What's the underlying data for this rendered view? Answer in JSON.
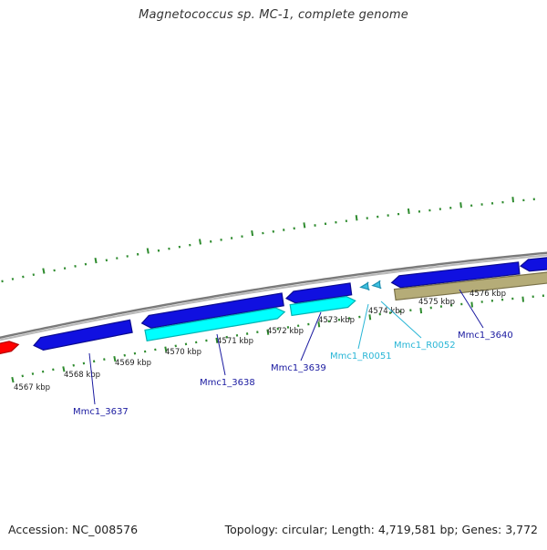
{
  "title": "Magnetococcus sp. MC-1, complete genome",
  "footer": {
    "accession": "Accession: NC_008576",
    "summary": "Topology: circular; Length: 4,719,581 bp; Genes: 3,772"
  },
  "colors": {
    "background": "#ffffff",
    "backbone": "#8c8c8c",
    "tick_green": "#2e8b2e",
    "gene_blue": "#1010e0",
    "gene_cyan": "#00ffff",
    "gene_cyan_edge": "#00b3b3",
    "gene_olive": "#b5ac78",
    "gene_red": "#ff0000",
    "gene_label_blue": "#1a1aa0",
    "rna_label_cyan": "#29b6d6",
    "axis_label": "#222222"
  },
  "axis_labels": [
    "4567 kbp",
    "4568 kbp",
    "4569 kbp",
    "4570 kbp",
    "4571 kbp",
    "4572 kbp",
    "4573 kbp",
    "4574 kbp",
    "4575 kbp",
    "4576 kbp"
  ],
  "gene_labels": [
    {
      "text": "Mmc1_3637",
      "type": "gene"
    },
    {
      "text": "Mmc1_3638",
      "type": "gene"
    },
    {
      "text": "Mmc1_3639",
      "type": "gene"
    },
    {
      "text": "Mmc1_R0051",
      "type": "rna"
    },
    {
      "text": "Mmc1_R0052",
      "type": "rna"
    },
    {
      "text": "Mmc1_3640",
      "type": "gene"
    }
  ]
}
